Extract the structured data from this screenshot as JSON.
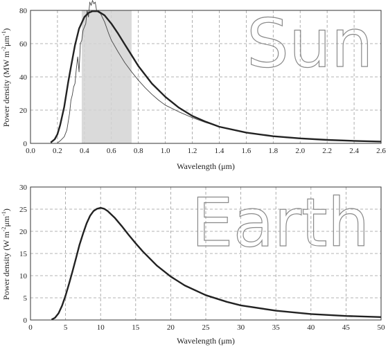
{
  "chart_data": [
    {
      "type": "line",
      "big_label": "Sun",
      "xlabel": "Wavelength (μm)",
      "ylabel_main": "Power density (MW m",
      "ylabel_sup1": "-2",
      "ylabel_mid": "μm",
      "ylabel_sup2": "-1",
      "ylabel_end": ")",
      "xlim": [
        0.0,
        2.6
      ],
      "ylim": [
        0,
        80
      ],
      "x_ticks": [
        0.0,
        0.2,
        0.4,
        0.6,
        0.8,
        1.0,
        1.2,
        1.4,
        1.6,
        1.8,
        2.0,
        2.2,
        2.4,
        2.6
      ],
      "x_tick_labels": [
        "0.0",
        "0.2",
        "0.4",
        "0.6",
        "0.8",
        "1.0",
        "1.2",
        "1.4",
        "1.6",
        "1.8",
        "2.0",
        "2.2",
        "2.4",
        "2.6"
      ],
      "y_ticks": [
        0,
        20,
        40,
        60,
        80
      ],
      "y_tick_labels": [
        "0",
        "20",
        "40",
        "60",
        "80"
      ],
      "grid": true,
      "visible_band": [
        0.38,
        0.75
      ],
      "blackbody": {
        "x": [
          0.15,
          0.18,
          0.2,
          0.22,
          0.25,
          0.28,
          0.3,
          0.33,
          0.36,
          0.4,
          0.43,
          0.46,
          0.5,
          0.55,
          0.6,
          0.65,
          0.7,
          0.75,
          0.8,
          0.9,
          1.0,
          1.1,
          1.2,
          1.3,
          1.4,
          1.6,
          1.8,
          2.0,
          2.2,
          2.4,
          2.6
        ],
        "y": [
          0.5,
          2.5,
          5.5,
          11,
          22,
          37,
          46,
          59,
          69,
          76,
          78.5,
          79.5,
          79.5,
          77,
          72,
          66,
          59.5,
          53,
          46.5,
          36,
          28,
          21.5,
          16.5,
          13,
          10,
          6.5,
          4.3,
          3,
          2.1,
          1.5,
          1.1
        ]
      },
      "observed": {
        "x": [
          0.2,
          0.22,
          0.25,
          0.27,
          0.29,
          0.3,
          0.31,
          0.32,
          0.33,
          0.34,
          0.35,
          0.36,
          0.37,
          0.38,
          0.39,
          0.4,
          0.41,
          0.42,
          0.43,
          0.44,
          0.45,
          0.46,
          0.47,
          0.48,
          0.49,
          0.5,
          0.52,
          0.55,
          0.58,
          0.6,
          0.65,
          0.7,
          0.75,
          0.8,
          0.85,
          0.9,
          0.95,
          1.0,
          1.1,
          1.2,
          1.3,
          1.4,
          1.6,
          1.8,
          2.0,
          2.2,
          2.4,
          2.6
        ],
        "y": [
          0.3,
          1.5,
          4,
          8,
          18,
          26,
          29,
          34,
          36,
          45,
          52,
          43,
          60,
          62,
          68,
          70,
          72,
          80,
          76,
          85,
          83,
          86,
          84,
          85,
          80,
          79,
          78,
          73,
          66,
          62,
          55,
          48.5,
          43,
          38,
          33.5,
          29.5,
          26,
          23,
          19,
          15.5,
          12.5,
          10,
          6.5,
          4.3,
          3,
          2.1,
          1.5,
          1.1
        ]
      }
    },
    {
      "type": "line",
      "big_label": "Earth",
      "xlabel": "Wavelength (μm)",
      "ylabel_main": "Power density (W m",
      "ylabel_sup1": "-2",
      "ylabel_mid": "μm",
      "ylabel_sup2": "-1",
      "ylabel_end": ")",
      "xlim": [
        0,
        50
      ],
      "ylim": [
        0,
        30
      ],
      "x_ticks": [
        0,
        5,
        10,
        15,
        20,
        25,
        30,
        35,
        40,
        45,
        50
      ],
      "x_tick_labels": [
        "0",
        "5",
        "10",
        "15",
        "20",
        "25",
        "30",
        "35",
        "40",
        "45",
        "50"
      ],
      "y_ticks": [
        0,
        5,
        10,
        15,
        20,
        25,
        30
      ],
      "y_tick_labels": [
        "0",
        "5",
        "10",
        "15",
        "20",
        "25",
        "30"
      ],
      "grid": true,
      "blackbody": {
        "x": [
          3,
          3.5,
          4,
          4.5,
          5,
          5.5,
          6,
          6.5,
          7,
          7.5,
          8,
          8.5,
          9,
          9.5,
          10,
          10.5,
          11,
          12,
          13,
          14,
          15,
          16,
          18,
          20,
          22,
          25,
          28,
          30,
          35,
          40,
          45,
          50
        ],
        "y": [
          0.1,
          0.5,
          1.5,
          3.2,
          5.5,
          8.2,
          11,
          14,
          17,
          19.5,
          21.8,
          23.5,
          24.6,
          25.1,
          25.3,
          25.1,
          24.6,
          23.1,
          21.2,
          19.2,
          17.3,
          15.5,
          12.3,
          9.8,
          7.8,
          5.6,
          4.1,
          3.3,
          2.1,
          1.35,
          0.9,
          0.65
        ]
      }
    }
  ]
}
